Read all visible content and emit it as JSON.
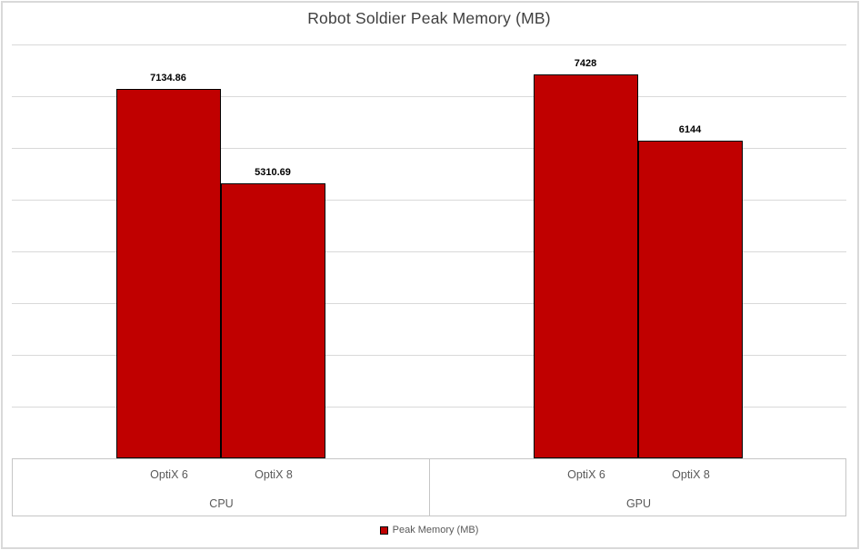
{
  "title": "Robot Soldier Peak Memory (MB)",
  "legend": {
    "label": "Peak Memory (MB)"
  },
  "colors": {
    "bar_fill": "#C00000",
    "bar_border": "#000000",
    "gridline": "#D9D9D9",
    "axis_line": "#C6C6C6",
    "title_text": "#404040",
    "axis_text": "#595959",
    "value_label_text": "#000000",
    "frame_border": "#D9D9D9",
    "background": "#FFFFFF"
  },
  "chart_data": {
    "type": "bar",
    "title": "Robot Soldier Peak Memory (MB)",
    "series_name": "Peak Memory (MB)",
    "bar_color": "#C00000",
    "groups": [
      {
        "label": "CPU",
        "categories": [
          "OptiX 6",
          "OptiX 8"
        ],
        "values": [
          7134.86,
          5310.69
        ],
        "value_labels": [
          "7134.86",
          "5310.69"
        ]
      },
      {
        "label": "GPU",
        "categories": [
          "OptiX 6",
          "OptiX 8"
        ],
        "values": [
          7428,
          6144
        ],
        "value_labels": [
          "7428",
          "6144"
        ]
      }
    ],
    "ylim": [
      0,
      8000
    ],
    "gridline_step": 1000,
    "y_axis_labels_visible": false,
    "grid": true,
    "legend_position": "bottom"
  }
}
